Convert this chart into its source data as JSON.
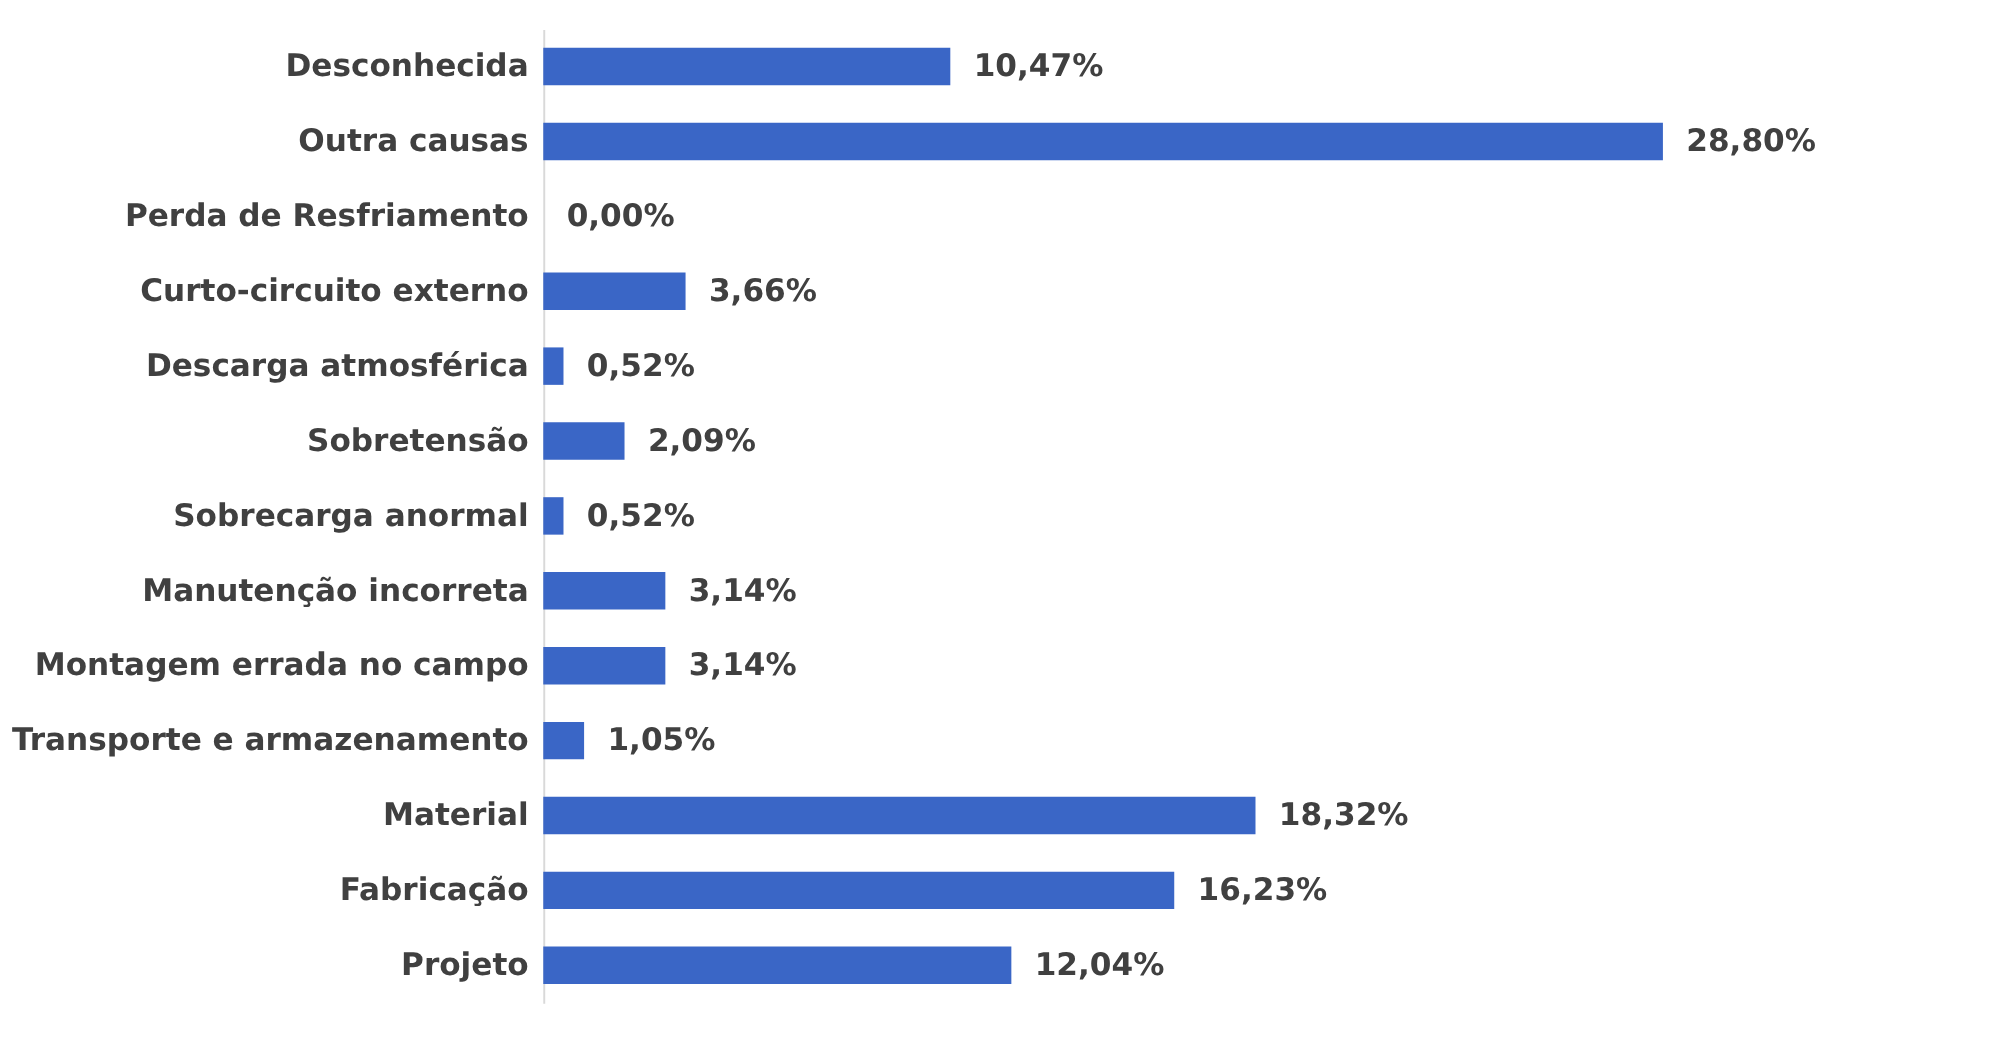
{
  "chart_data": {
    "type": "bar",
    "orientation": "horizontal",
    "categories": [
      "Desconhecida",
      "Outra causas",
      "Perda de Resfriamento",
      "Curto-circuito externo",
      "Descarga atmosférica",
      "Sobretensão",
      "Sobrecarga anormal",
      "Manutenção incorreta",
      "Montagem errada no campo",
      "Transporte e armazenamento",
      "Material",
      "Fabricação",
      "Projeto"
    ],
    "values": [
      10.47,
      28.8,
      0.0,
      3.66,
      0.52,
      2.09,
      0.52,
      3.14,
      3.14,
      1.05,
      18.32,
      16.23,
      12.04
    ],
    "value_labels": [
      "10,47%",
      "28,80%",
      "0,00%",
      "3,66%",
      "0,52%",
      "2,09%",
      "0,52%",
      "3,14%",
      "3,14%",
      "1,05%",
      "18,32%",
      "16,23%",
      "12,04%"
    ],
    "color": "#3a66c6",
    "grid": false
  }
}
